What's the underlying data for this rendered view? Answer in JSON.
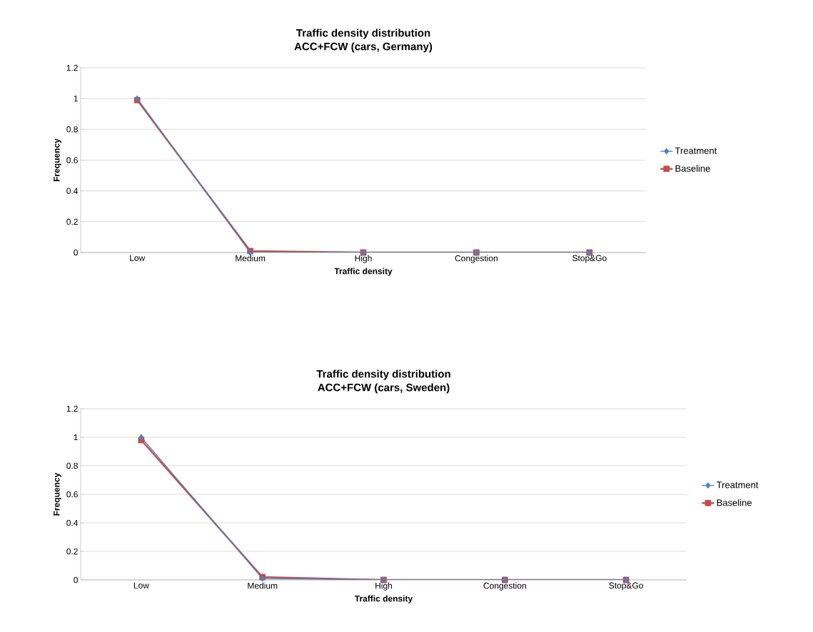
{
  "chart_data": [
    {
      "type": "line",
      "title": "Traffic density distribution",
      "subtitle": "ACC+FCW  (cars, Germany)",
      "xlabel": "Traffic density",
      "ylabel": "Frequency",
      "categories": [
        "Low",
        "Medium",
        "High",
        "Congestion",
        "Stop&Go"
      ],
      "series": [
        {
          "name": "Treatment",
          "color": "#4f81bd",
          "marker": "diamond",
          "values": [
            1.0,
            0.0,
            0.0,
            0.0,
            0.0
          ]
        },
        {
          "name": "Baseline",
          "color": "#c0504d",
          "marker": "square",
          "values": [
            0.99,
            0.01,
            0.0,
            0.0,
            0.0
          ]
        }
      ],
      "ylim": [
        0,
        1.2
      ],
      "yticks": [
        0,
        0.2,
        0.4,
        0.6,
        0.8,
        1,
        1.2
      ],
      "grid": "y",
      "legend": "right"
    },
    {
      "type": "line",
      "title": "Traffic density distribution",
      "subtitle": "ACC+FCW  (cars, Sweden)",
      "xlabel": "Traffic density",
      "ylabel": "Frequency",
      "categories": [
        "Low",
        "Medium",
        "High",
        "Congestion",
        "Stop&Go"
      ],
      "series": [
        {
          "name": "Treatment",
          "color": "#4f81bd",
          "marker": "diamond",
          "values": [
            1.0,
            0.01,
            0.0,
            0.0,
            0.0
          ]
        },
        {
          "name": "Baseline",
          "color": "#c0504d",
          "marker": "square",
          "values": [
            0.98,
            0.02,
            0.0,
            0.0,
            0.0
          ]
        }
      ],
      "ylim": [
        0,
        1.2
      ],
      "yticks": [
        0,
        0.2,
        0.4,
        0.6,
        0.8,
        1,
        1.2
      ],
      "grid": "y",
      "legend": "right"
    }
  ]
}
